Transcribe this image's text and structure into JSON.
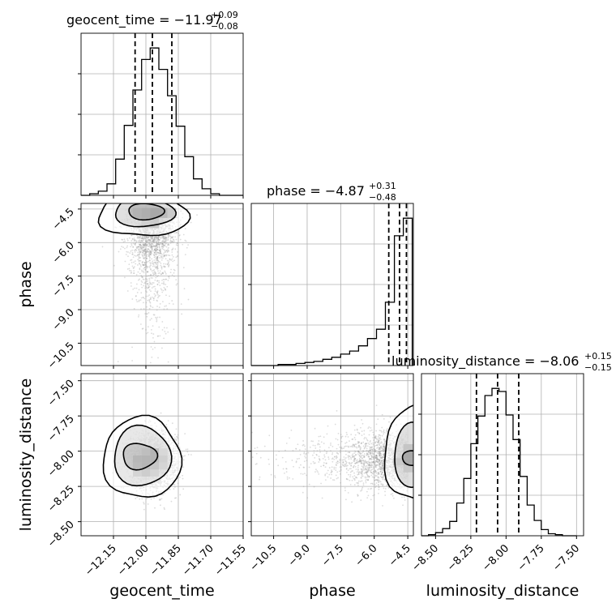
{
  "chart_data": {
    "type": "corner",
    "parameters": [
      "geocent_time",
      "phase",
      "luminosity_distance"
    ],
    "titles": [
      {
        "param": "geocent_time",
        "median": "−11.97",
        "plus": "+0.09",
        "minus": "−0.08",
        "prefix": "geocent_time = "
      },
      {
        "param": "phase",
        "median": "−4.87",
        "plus": "+0.31",
        "minus": "−0.48",
        "prefix": "phase = "
      },
      {
        "param": "luminosity_distance",
        "median": "−8.06",
        "plus": "+0.15",
        "minus": "−0.15",
        "prefix": "luminosity_distance = "
      }
    ],
    "ranges": {
      "geocent_time": [
        -12.3,
        -11.55
      ],
      "phase": [
        -11.5,
        -4.25
      ],
      "luminosity_distance": [
        -8.6,
        -7.45
      ]
    },
    "ticks": {
      "geocent_time": [
        -12.15,
        -12.0,
        -11.85,
        -11.7,
        -11.55
      ],
      "phase": [
        -10.5,
        -9.0,
        -7.5,
        -6.0,
        -4.5
      ],
      "luminosity_distance": [
        -8.5,
        -8.25,
        -8.0,
        -7.75,
        -7.5
      ]
    },
    "tick_labels": {
      "geocent_time": [
        "−12.15",
        "−12.00",
        "−11.85",
        "−11.70",
        "−11.55"
      ],
      "phase": [
        "−10.5",
        "−9.0",
        "−7.5",
        "−6.0",
        "−4.5"
      ],
      "luminosity_distance": [
        "−8.50",
        "−8.25",
        "−8.00",
        "−7.75",
        "−7.50"
      ]
    },
    "quantiles": {
      "geocent_time": [
        -12.05,
        -11.97,
        -11.88
      ],
      "phase": [
        -5.35,
        -4.87,
        -4.56
      ],
      "luminosity_distance": [
        -8.21,
        -8.06,
        -7.91
      ]
    },
    "histograms": {
      "geocent_time": {
        "edges": [
          -12.3,
          -12.26,
          -12.22,
          -12.18,
          -12.14,
          -12.1,
          -12.06,
          -12.02,
          -11.98,
          -11.94,
          -11.9,
          -11.86,
          -11.82,
          -11.78,
          -11.74,
          -11.7,
          -11.66,
          -11.62,
          -11.58,
          -11.55
        ],
        "counts": [
          0,
          2,
          5,
          14,
          44,
          85,
          128,
          165,
          179,
          153,
          121,
          84,
          47,
          20,
          8,
          2,
          0,
          0,
          0
        ]
      },
      "phase": {
        "edges": [
          -11.5,
          -11.1,
          -10.7,
          -10.3,
          -9.9,
          -9.5,
          -9.1,
          -8.7,
          -8.3,
          -7.9,
          -7.5,
          -7.1,
          -6.7,
          -6.3,
          -5.9,
          -5.5,
          -5.1,
          -4.7,
          -4.3
        ],
        "counts": [
          0,
          0,
          0,
          1,
          1,
          2,
          3,
          4,
          6,
          8,
          11,
          14,
          19,
          26,
          35,
          61,
          125,
          142
        ]
      },
      "luminosity_distance": {
        "edges": [
          -8.6,
          -8.55,
          -8.5,
          -8.45,
          -8.4,
          -8.35,
          -8.3,
          -8.25,
          -8.2,
          -8.15,
          -8.1,
          -8.05,
          -8.0,
          -7.95,
          -7.9,
          -7.85,
          -7.8,
          -7.75,
          -7.7,
          -7.65,
          -7.6,
          -7.55,
          -7.5
        ],
        "counts": [
          0,
          1,
          3,
          7,
          14,
          32,
          56,
          90,
          117,
          137,
          144,
          141,
          118,
          94,
          58,
          30,
          15,
          6,
          2,
          1,
          0,
          0
        ]
      }
    },
    "grid": true
  }
}
